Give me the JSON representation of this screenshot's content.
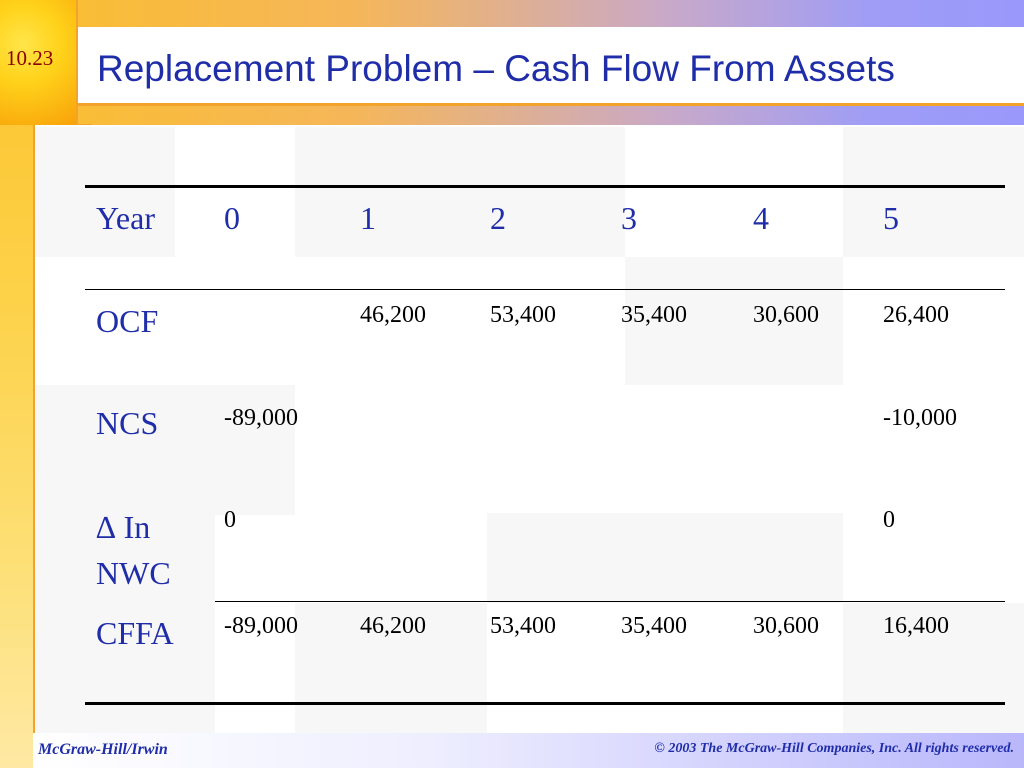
{
  "slide_number": "10.23",
  "title": "Replacement Problem – Cash Flow From Assets",
  "table": {
    "header": {
      "label": "Year",
      "years": [
        "0",
        "1",
        "2",
        "3",
        "4",
        "5"
      ]
    },
    "rows": [
      {
        "label": "OCF",
        "values": [
          "",
          "46,200",
          "53,400",
          "35,400",
          "30,600",
          "26,400"
        ]
      },
      {
        "label": "NCS",
        "values": [
          "-89,000",
          "",
          "",
          "",
          "",
          "-10,000"
        ]
      },
      {
        "label_line1": "∆ In",
        "label_line2": "NWC",
        "values": [
          "0",
          "",
          "",
          "",
          "",
          "0"
        ]
      },
      {
        "label": "CFFA",
        "values": [
          "-89,000",
          "46,200",
          "53,400",
          "35,400",
          "30,600",
          "16,400"
        ]
      }
    ]
  },
  "footer": {
    "left": "McGraw-Hill/Irwin",
    "right": "© 2003 The McGraw-Hill Companies, Inc. All rights reserved."
  },
  "colors": {
    "accent": "#1f2da8",
    "rule": "#f3a32c",
    "shade": "#f7f7f7"
  }
}
